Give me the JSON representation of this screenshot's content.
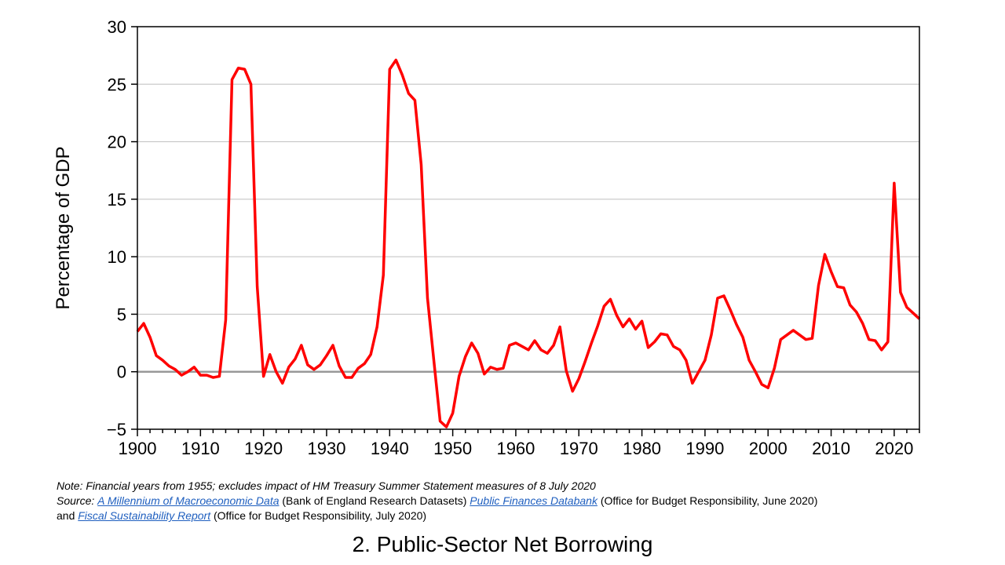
{
  "chart_data": {
    "type": "line",
    "ylabel": "Percentage of GDP",
    "xlabel": "",
    "xlim": [
      1900,
      2024
    ],
    "ylim": [
      -5,
      30
    ],
    "y_ticks": [
      -5,
      0,
      5,
      10,
      15,
      20,
      25,
      30
    ],
    "y_tick_labels": [
      "−5",
      "0",
      "5",
      "10",
      "15",
      "20",
      "25",
      "30"
    ],
    "x_ticks": [
      1900,
      1910,
      1920,
      1930,
      1940,
      1950,
      1960,
      1970,
      1980,
      1990,
      2000,
      2010,
      2020
    ],
    "x_tick_labels": [
      "1900",
      "1910",
      "1920",
      "1930",
      "1940",
      "1950",
      "1960",
      "1970",
      "1980",
      "1990",
      "2000",
      "2010",
      "2020"
    ],
    "grid": "horizontal",
    "legend": "none",
    "series": [
      {
        "color": "#ff0000",
        "x": [
          1900,
          1901,
          1902,
          1903,
          1904,
          1905,
          1906,
          1907,
          1908,
          1909,
          1910,
          1911,
          1912,
          1913,
          1914,
          1915,
          1916,
          1917,
          1918,
          1919,
          1920,
          1921,
          1922,
          1923,
          1924,
          1925,
          1926,
          1927,
          1928,
          1929,
          1930,
          1931,
          1932,
          1933,
          1934,
          1935,
          1936,
          1937,
          1938,
          1939,
          1940,
          1941,
          1942,
          1943,
          1944,
          1945,
          1946,
          1947,
          1948,
          1949,
          1950,
          1951,
          1952,
          1953,
          1954,
          1955,
          1956,
          1957,
          1958,
          1959,
          1960,
          1961,
          1962,
          1963,
          1964,
          1965,
          1966,
          1967,
          1968,
          1969,
          1970,
          1971,
          1972,
          1973,
          1974,
          1975,
          1976,
          1977,
          1978,
          1979,
          1980,
          1981,
          1982,
          1983,
          1984,
          1985,
          1986,
          1987,
          1988,
          1989,
          1990,
          1991,
          1992,
          1993,
          1994,
          1995,
          1996,
          1997,
          1998,
          1999,
          2000,
          2001,
          2002,
          2003,
          2004,
          2005,
          2006,
          2007,
          2008,
          2009,
          2010,
          2011,
          2012,
          2013,
          2014,
          2015,
          2016,
          2017,
          2018,
          2019,
          2020,
          2021,
          2022,
          2023,
          2024
        ],
        "values": [
          3.5,
          4.2,
          3.0,
          1.4,
          1.0,
          0.5,
          0.2,
          -0.3,
          0.0,
          0.4,
          -0.3,
          -0.3,
          -0.5,
          -0.4,
          4.5,
          25.4,
          26.4,
          26.3,
          25.0,
          7.4,
          -0.4,
          1.5,
          0.0,
          -1.0,
          0.4,
          1.1,
          2.3,
          0.6,
          0.2,
          0.6,
          1.4,
          2.3,
          0.5,
          -0.5,
          -0.5,
          0.3,
          0.7,
          1.5,
          3.9,
          8.4,
          26.3,
          27.1,
          25.8,
          24.2,
          23.6,
          18.0,
          6.4,
          1.0,
          -4.3,
          -4.8,
          -3.6,
          -0.4,
          1.3,
          2.5,
          1.6,
          -0.2,
          0.4,
          0.2,
          0.3,
          2.3,
          2.5,
          2.2,
          1.9,
          2.7,
          1.9,
          1.6,
          2.3,
          3.9,
          0.1,
          -1.7,
          -0.6,
          0.9,
          2.5,
          4.0,
          5.7,
          6.3,
          4.9,
          3.9,
          4.6,
          3.7,
          4.4,
          2.1,
          2.6,
          3.3,
          3.2,
          2.2,
          1.9,
          1.0,
          -1.0,
          0.0,
          1.0,
          3.2,
          6.4,
          6.6,
          5.4,
          4.1,
          3.0,
          1.0,
          0.0,
          -1.1,
          -1.4,
          0.3,
          2.8,
          3.2,
          3.6,
          3.2,
          2.8,
          2.9,
          7.5,
          10.2,
          8.7,
          7.4,
          7.3,
          5.8,
          5.2,
          4.2,
          2.8,
          2.7,
          1.9,
          2.6,
          16.4,
          6.9,
          5.6,
          5.1,
          4.6
        ]
      }
    ]
  },
  "notes": {
    "note_line": "Note: Financial years from 1955; excludes impact of HM Treasury Summer Statement measures of 8 July 2020",
    "source_label": "Source:",
    "link1": "A Millennium of Macroeconomic Data",
    "text1": "(Bank of England Research Datasets)",
    "link2": "Public Finances Databank",
    "text2": "(Office for Budget Responsibility, June 2020)",
    "and_word": "and",
    "link3": "Fiscal Sustainability Report",
    "text3": "(Office for Budget Responsibility, July 2020)"
  },
  "footer_title": "2. Public-Sector Net Borrowing"
}
